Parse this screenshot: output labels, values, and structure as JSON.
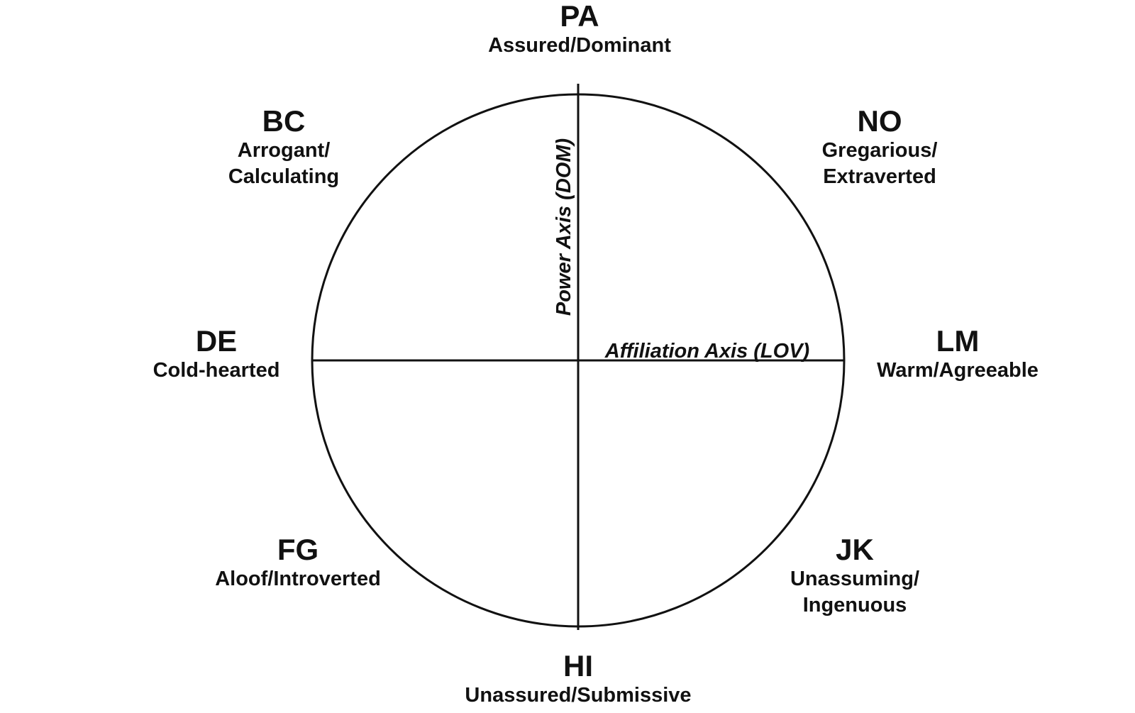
{
  "diagram": {
    "axes": {
      "vertical_label": "Power Axis (DOM)",
      "horizontal_label": "Affiliation Axis (LOV)"
    },
    "octants": {
      "pa": {
        "code": "PA",
        "desc_lines": [
          "Assured/Dominant"
        ]
      },
      "bc": {
        "code": "BC",
        "desc_lines": [
          "Arrogant/",
          "Calculating"
        ]
      },
      "no": {
        "code": "NO",
        "desc_lines": [
          "Gregarious/",
          "Extraverted"
        ]
      },
      "de": {
        "code": "DE",
        "desc_lines": [
          "Cold-hearted"
        ]
      },
      "lm": {
        "code": "LM",
        "desc_lines": [
          "Warm/Agreeable"
        ]
      },
      "fg": {
        "code": "FG",
        "desc_lines": [
          "Aloof/Introverted"
        ]
      },
      "jk": {
        "code": "JK",
        "desc_lines": [
          "Unassuming/",
          "Ingenuous"
        ]
      },
      "hi": {
        "code": "HI",
        "desc_lines": [
          "Unassured/Submissive"
        ]
      }
    },
    "colors": {
      "line": "#111111",
      "background": "#ffffff"
    }
  }
}
